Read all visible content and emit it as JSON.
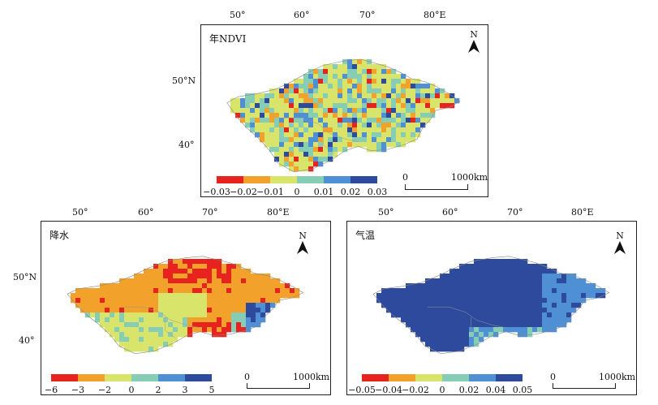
{
  "panels": [
    {
      "id": "ndvi",
      "title": "年NDVI",
      "lon_ticks": [
        "50°",
        "60°",
        "70°",
        "80°E"
      ],
      "lat_ticks": [
        "50°N",
        "40°"
      ],
      "north_label": "N",
      "legend_colors": [
        "#e8221e",
        "#f2a12b",
        "#d9e56a",
        "#86cdb6",
        "#4f8fd3",
        "#2e4a9c"
      ],
      "legend_labels": [
        "−0.03",
        "−0.02",
        "−0.01",
        "0",
        "0.01",
        "0.02",
        "0.03"
      ],
      "scale": {
        "start": "0",
        "end": "1000km"
      }
    },
    {
      "id": "precip",
      "title": "降水",
      "lon_ticks": [
        "50°",
        "60°",
        "70°",
        "80°E"
      ],
      "lat_ticks": [
        "50°N",
        "40°"
      ],
      "north_label": "N",
      "legend_colors": [
        "#e8221e",
        "#f2a12b",
        "#d9e56a",
        "#86cdb6",
        "#4f8fd3",
        "#2e4a9c"
      ],
      "legend_labels": [
        "−6",
        "−3",
        "−2",
        "0",
        "2",
        "3",
        "5"
      ],
      "scale": {
        "start": "0",
        "end": "1000km"
      }
    },
    {
      "id": "temp",
      "title": "气温",
      "lon_ticks": [
        "50°",
        "60°",
        "70°",
        "80°E"
      ],
      "lat_ticks": [],
      "north_label": "N",
      "legend_colors": [
        "#e8221e",
        "#f2a12b",
        "#d9e56a",
        "#86cdb6",
        "#4f8fd3",
        "#2e4a9c"
      ],
      "legend_labels": [
        "−0.05",
        "−0.04",
        "−0.02",
        "0",
        "0.02",
        "0.04",
        "0.05"
      ],
      "scale": {
        "start": "0",
        "end": "1000km"
      }
    }
  ]
}
